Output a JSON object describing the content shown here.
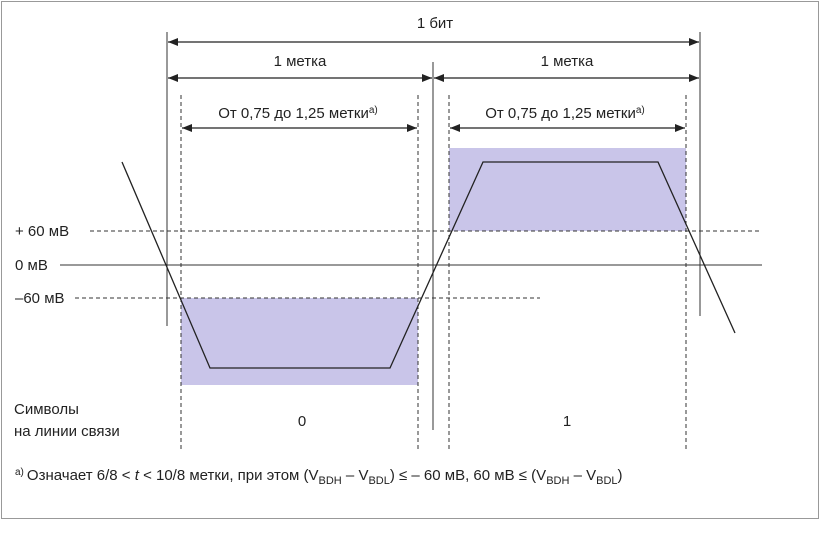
{
  "title": "1 бит",
  "half_labels": [
    "1 метка",
    "1 метка"
  ],
  "window_labels": [
    "От 0,75 до 1,25 метки",
    "От 0,75 до 1,25 метки"
  ],
  "window_note": "a)",
  "levels": [
    "+ 60 мВ",
    "0 мВ",
    "–60 мВ"
  ],
  "symbols_label": [
    "Символы",
    "на линии связи"
  ],
  "symbols": [
    "0",
    "1"
  ],
  "footnote": {
    "marker": "a)",
    "parts": [
      "Означает 6/8 < ",
      "t",
      " < 10/8 метки, при этом (V",
      "BDH",
      " – V",
      "BDL",
      ") ≤ – 60 мВ, 60 мВ ≤ (V",
      "BDH",
      " – V",
      "BDL",
      ")"
    ]
  }
}
